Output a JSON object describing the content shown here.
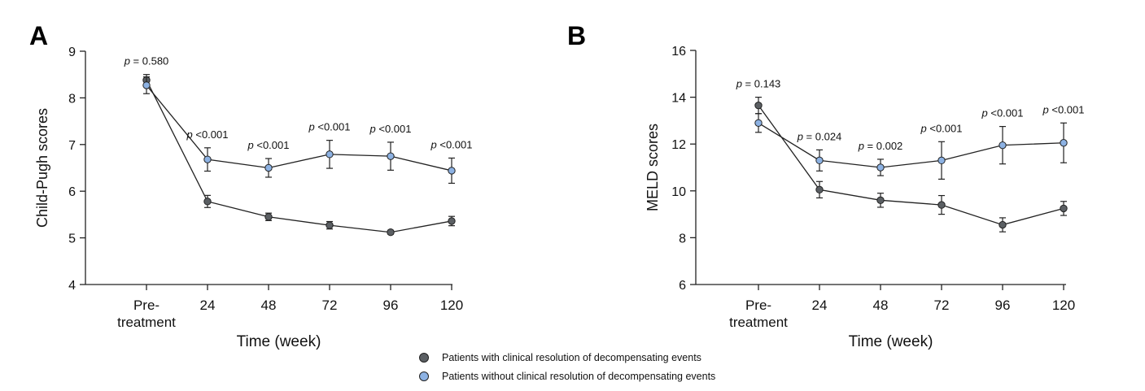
{
  "colors": {
    "resolved": "#5b5f63",
    "unresolved": "#8db2e3",
    "axis": "#222222"
  },
  "legend": {
    "items": [
      {
        "series": "resolved",
        "label": "Patients with clinical resolution of decompensating events"
      },
      {
        "series": "unresolved",
        "label": "Patients without clinical resolution of decompensating events"
      }
    ]
  },
  "chart_data": [
    {
      "type": "line",
      "panel_label": "A",
      "xlabel": "Time (week)",
      "ylabel": "Child-Pugh scores",
      "categories": [
        "Pre-\ntreatment",
        "24",
        "48",
        "72",
        "96",
        "120"
      ],
      "ylim": [
        4,
        9
      ],
      "yticks": [
        4,
        5,
        6,
        7,
        8,
        9
      ],
      "series": [
        {
          "key": "resolved",
          "name": "Patients with clinical resolution of decompensating events",
          "values": [
            8.38,
            5.78,
            5.45,
            5.27,
            5.12,
            5.36
          ],
          "err": [
            0.12,
            0.13,
            0.08,
            0.08,
            0.04,
            0.1
          ]
        },
        {
          "key": "unresolved",
          "name": "Patients without clinical resolution of decompensating events",
          "values": [
            8.27,
            6.68,
            6.5,
            6.79,
            6.75,
            6.44
          ],
          "err": [
            0.18,
            0.25,
            0.2,
            0.3,
            0.3,
            0.27
          ]
        }
      ],
      "annotations": [
        {
          "text": "p = 0.580",
          "x": 0
        },
        {
          "text": "p <0.001",
          "x": 1
        },
        {
          "text": "p <0.001",
          "x": 2
        },
        {
          "text": "p <0.001",
          "x": 3
        },
        {
          "text": "p <0.001",
          "x": 4
        },
        {
          "text": "p <0.001",
          "x": 5
        }
      ],
      "grid": false
    },
    {
      "type": "line",
      "panel_label": "B",
      "xlabel": "Time (week)",
      "ylabel": "MELD scores",
      "categories": [
        "Pre-\ntreatment",
        "24",
        "48",
        "72",
        "96",
        "120"
      ],
      "ylim": [
        6,
        16
      ],
      "yticks": [
        6,
        8,
        10,
        12,
        14,
        16
      ],
      "series": [
        {
          "key": "resolved",
          "name": "Patients with clinical resolution of decompensating events",
          "values": [
            13.65,
            10.05,
            9.6,
            9.4,
            8.55,
            9.25
          ],
          "err": [
            0.35,
            0.35,
            0.3,
            0.4,
            0.3,
            0.3
          ]
        },
        {
          "key": "unresolved",
          "name": "Patients without clinical resolution of decompensating events",
          "values": [
            12.9,
            11.3,
            11.0,
            11.3,
            11.95,
            12.05
          ],
          "err": [
            0.4,
            0.45,
            0.35,
            0.8,
            0.8,
            0.85
          ]
        }
      ],
      "annotations": [
        {
          "text": "p = 0.143",
          "x": 0
        },
        {
          "text": "p = 0.024",
          "x": 1
        },
        {
          "text": "p = 0.002",
          "x": 2
        },
        {
          "text": "p <0.001",
          "x": 3
        },
        {
          "text": "p <0.001",
          "x": 4
        },
        {
          "text": "p <0.001",
          "x": 5
        }
      ],
      "grid": false
    }
  ]
}
